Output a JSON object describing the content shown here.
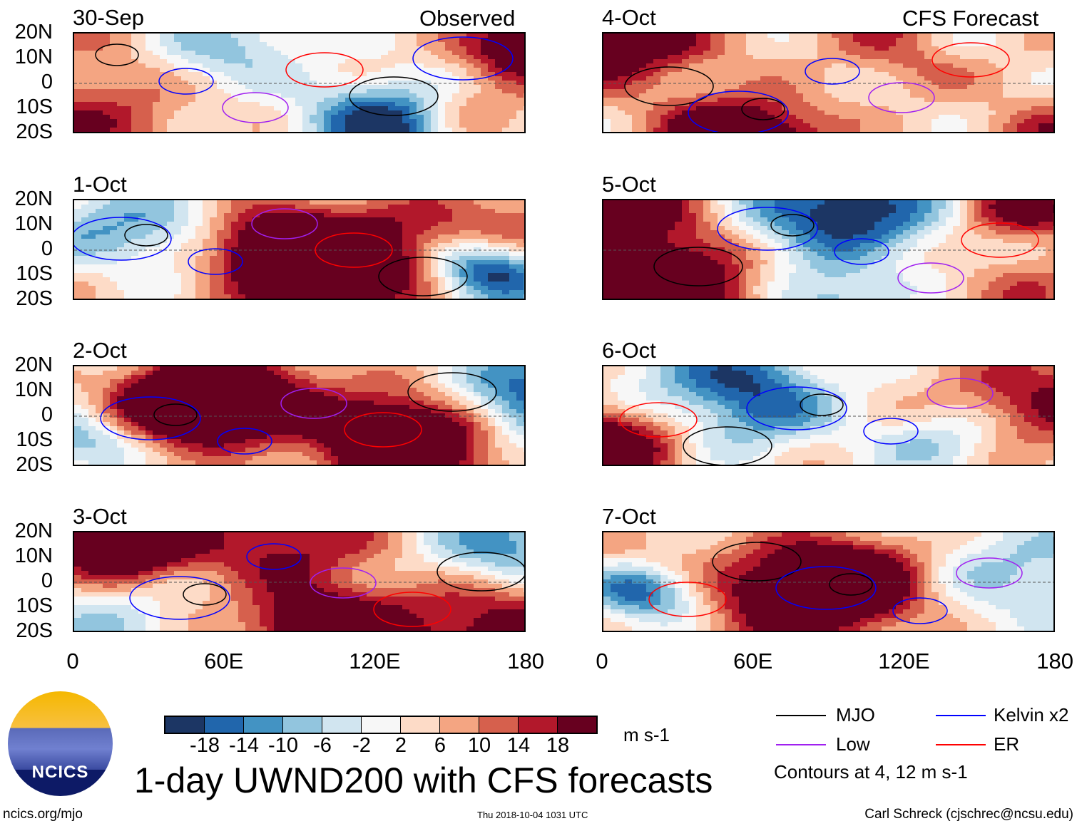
{
  "figure": {
    "title": "1-day UWND200 with CFS forecasts",
    "left_header": "Observed",
    "right_header": "CFS Forecast",
    "url": "ncics.org/mjo",
    "timestamp": "Thu 2018-10-04 1031 UTC",
    "author": "Carl Schreck (cjschrec@ncsu.edu)",
    "logo_text": "NCICS"
  },
  "panels": [
    {
      "date": "30-Sep",
      "type": "observed"
    },
    {
      "date": "1-Oct",
      "type": "observed"
    },
    {
      "date": "2-Oct",
      "type": "observed"
    },
    {
      "date": "3-Oct",
      "type": "observed"
    },
    {
      "date": "4-Oct",
      "type": "forecast"
    },
    {
      "date": "5-Oct",
      "type": "forecast"
    },
    {
      "date": "6-Oct",
      "type": "forecast"
    },
    {
      "date": "7-Oct",
      "type": "forecast"
    }
  ],
  "axes": {
    "lat_labels": [
      "20N",
      "10N",
      "0",
      "10S",
      "20S"
    ],
    "lon_labels": [
      "0",
      "60E",
      "120E",
      "180"
    ]
  },
  "colorbar": {
    "colors": [
      "#1c3664",
      "#2166ac",
      "#4393c3",
      "#92c5de",
      "#d1e5f0",
      "#f7f7f7",
      "#fddbc7",
      "#f4a582",
      "#d6604d",
      "#b2182b",
      "#67001f"
    ],
    "labels": [
      "-18",
      "-14",
      "-10",
      "-6",
      "-2",
      "2",
      "6",
      "10",
      "14",
      "18"
    ],
    "units": "m s-1"
  },
  "legend": {
    "items": [
      {
        "label": "MJO",
        "color": "#000000"
      },
      {
        "label": "Kelvin x2",
        "color": "#0000ff"
      },
      {
        "label": "Low",
        "color": "#a020f0"
      },
      {
        "label": "ER",
        "color": "#ff0000"
      }
    ],
    "note": "Contours at 4, 12 m s-1"
  }
}
